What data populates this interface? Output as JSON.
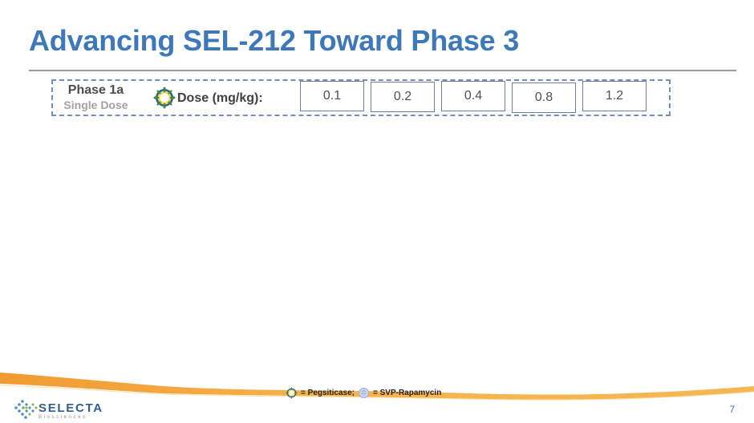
{
  "slide": {
    "title": "Advancing SEL-212 Toward Phase 3",
    "page_number": "7"
  },
  "phase": {
    "name": "Phase 1a",
    "subtitle": "Single Dose",
    "dose_label": "Dose (mg/kg):",
    "doses": [
      "0.1",
      "0.2",
      "0.4",
      "0.8",
      "1.2"
    ]
  },
  "legend": {
    "pegsiticase_label": "= Pegsiticase;",
    "svp_label": "= SVP-Rapamycin"
  },
  "logo": {
    "name": "SELECTA",
    "subtitle": "Biosciences"
  },
  "colors": {
    "title": "#3d78bb",
    "dose_border": "#6d7f98",
    "phase_border": "#6f8fc0",
    "orange_band": "#f4a33a",
    "logo_blue": "#2f5f8f"
  },
  "icons": {
    "pegsiticase": "pegsiticase-icon",
    "svp": "svp-rapamycin-icon",
    "logo": "selecta-logo-icon"
  }
}
